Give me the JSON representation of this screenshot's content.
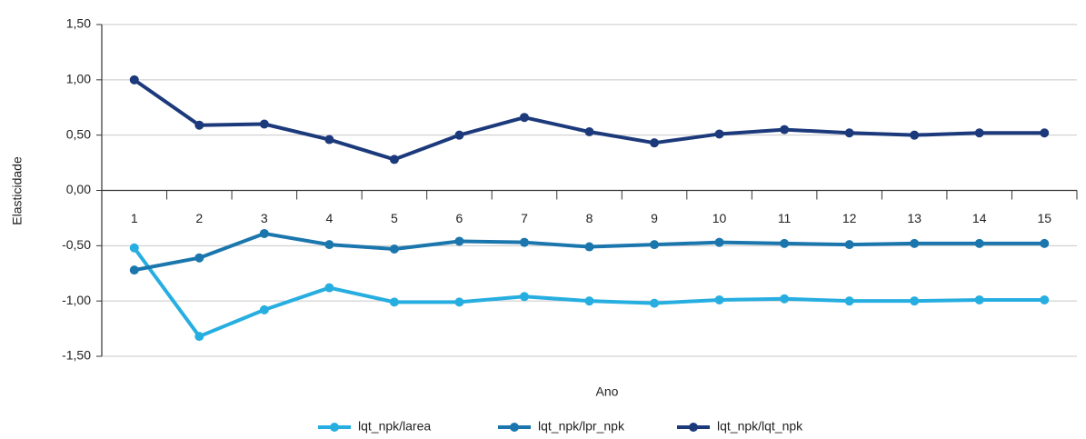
{
  "chart_data": {
    "type": "line",
    "x_label": "Ano",
    "y_label": "Elasticidade",
    "categories": [
      "1",
      "2",
      "3",
      "4",
      "5",
      "6",
      "7",
      "8",
      "9",
      "10",
      "11",
      "12",
      "13",
      "14",
      "15"
    ],
    "series": [
      {
        "name": "lqt_npk/larea",
        "color": "#27aee0",
        "values": [
          -0.52,
          -1.32,
          -1.08,
          -0.88,
          -1.01,
          -1.01,
          -0.96,
          -1.0,
          -1.02,
          -0.99,
          -0.98,
          -1.0,
          -1.0,
          -0.99,
          -0.99
        ]
      },
      {
        "name": "lqt_npk/lpr_npk",
        "color": "#1a76ad",
        "values": [
          -0.72,
          -0.61,
          -0.39,
          -0.49,
          -0.53,
          -0.46,
          -0.47,
          -0.51,
          -0.49,
          -0.47,
          -0.48,
          -0.49,
          -0.48,
          -0.48,
          -0.48
        ]
      },
      {
        "name": "lqt_npk/lqt_npk",
        "color": "#1c3a7b",
        "values": [
          1.0,
          0.59,
          0.6,
          0.46,
          0.28,
          0.5,
          0.66,
          0.53,
          0.43,
          0.51,
          0.55,
          0.52,
          0.5,
          0.52,
          0.52
        ]
      }
    ],
    "ylim": [
      -1.5,
      1.5
    ],
    "yticks": [
      {
        "value": -1.5,
        "label": "-1,50"
      },
      {
        "value": -1.0,
        "label": "-1,00"
      },
      {
        "value": -0.5,
        "label": "-0,50"
      },
      {
        "value": 0,
        "label": "0,00"
      },
      {
        "value": 0.5,
        "label": "0,50"
      },
      {
        "value": 1.0,
        "label": "1,00"
      },
      {
        "value": 1.5,
        "label": "1,50"
      }
    ],
    "grid": true,
    "legend": "bottom"
  }
}
